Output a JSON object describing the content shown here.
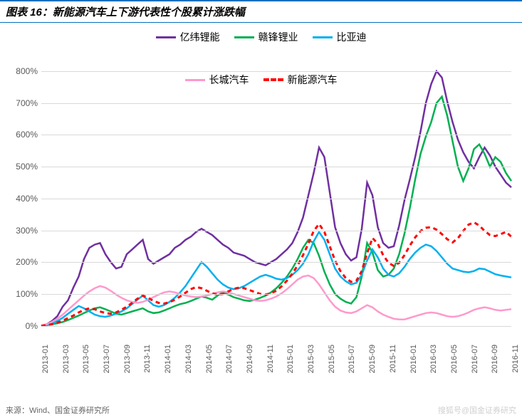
{
  "title": "图表 16：新能源汽车上下游代表性个股累计涨跌幅",
  "source": "来源：Wind、国金证券研究所",
  "watermark": "搜狐号@国金证券研究",
  "chart": {
    "type": "line",
    "background_color": "#ffffff",
    "grid_color": "#d9d9d9",
    "title_fontsize": 15,
    "label_fontsize": 12,
    "ylim": [
      -50,
      800
    ],
    "ytick_step": 100,
    "yticks": [
      "0%",
      "100%",
      "200%",
      "300%",
      "400%",
      "500%",
      "600%",
      "700%",
      "800%"
    ],
    "x_categories": [
      "2013-01",
      "2013-03",
      "2013-05",
      "2013-07",
      "2013-09",
      "2013-11",
      "2014-01",
      "2014-03",
      "2014-05",
      "2014-07",
      "2014-09",
      "2014-11",
      "2015-01",
      "2015-03",
      "2015-05",
      "2015-07",
      "2015-09",
      "2015-11",
      "2016-01",
      "2016-03",
      "2016-05",
      "2016-07",
      "2016-09",
      "2016-11"
    ],
    "series": [
      {
        "name": "亿纬锂能",
        "color": "#7030a0",
        "line_width": 2.5,
        "dash": "none",
        "data": [
          0,
          5,
          15,
          30,
          60,
          80,
          120,
          155,
          210,
          245,
          255,
          260,
          225,
          200,
          180,
          185,
          225,
          240,
          255,
          270,
          210,
          195,
          205,
          215,
          225,
          245,
          255,
          270,
          280,
          295,
          305,
          295,
          285,
          270,
          255,
          245,
          230,
          225,
          220,
          210,
          200,
          195,
          190,
          200,
          210,
          225,
          240,
          260,
          295,
          340,
          410,
          480,
          560,
          530,
          420,
          310,
          260,
          225,
          205,
          215,
          305,
          450,
          410,
          310,
          260,
          245,
          250,
          315,
          395,
          460,
          530,
          610,
          700,
          760,
          800,
          780,
          705,
          640,
          585,
          545,
          515,
          495,
          530,
          560,
          535,
          500,
          475,
          450,
          435
        ]
      },
      {
        "name": "赣锋锂业",
        "color": "#00b050",
        "line_width": 2.5,
        "dash": "none",
        "data": [
          0,
          2,
          5,
          8,
          12,
          18,
          25,
          32,
          40,
          48,
          55,
          58,
          52,
          45,
          38,
          35,
          40,
          45,
          50,
          55,
          45,
          40,
          42,
          48,
          55,
          62,
          68,
          72,
          78,
          85,
          92,
          88,
          82,
          95,
          105,
          98,
          90,
          85,
          80,
          78,
          82,
          88,
          95,
          105,
          118,
          135,
          155,
          180,
          210,
          245,
          270,
          260,
          220,
          170,
          130,
          100,
          85,
          75,
          70,
          90,
          155,
          260,
          230,
          175,
          155,
          160,
          180,
          225,
          290,
          370,
          460,
          540,
          595,
          640,
          700,
          720,
          660,
          580,
          500,
          455,
          495,
          555,
          570,
          540,
          500,
          530,
          515,
          480,
          455
        ]
      },
      {
        "name": "比亚迪",
        "color": "#00b0f0",
        "line_width": 2.5,
        "dash": "none",
        "data": [
          0,
          3,
          8,
          15,
          25,
          38,
          50,
          62,
          55,
          45,
          35,
          30,
          28,
          32,
          38,
          45,
          55,
          68,
          82,
          95,
          80,
          65,
          60,
          65,
          75,
          88,
          105,
          125,
          150,
          175,
          200,
          185,
          165,
          145,
          130,
          120,
          115,
          118,
          125,
          135,
          145,
          155,
          160,
          155,
          148,
          145,
          150,
          160,
          175,
          195,
          225,
          265,
          295,
          270,
          225,
          180,
          155,
          140,
          130,
          135,
          160,
          205,
          240,
          215,
          180,
          160,
          155,
          165,
          185,
          210,
          230,
          245,
          255,
          250,
          235,
          215,
          195,
          180,
          175,
          170,
          168,
          172,
          180,
          178,
          170,
          162,
          158,
          155,
          152
        ]
      },
      {
        "name": "长城汽车",
        "color": "#ff99cc",
        "line_width": 2.5,
        "dash": "none",
        "data": [
          0,
          5,
          12,
          22,
          35,
          50,
          65,
          80,
          95,
          108,
          118,
          125,
          120,
          110,
          98,
          88,
          80,
          75,
          72,
          75,
          82,
          90,
          98,
          105,
          108,
          105,
          100,
          95,
          92,
          90,
          92,
          95,
          100,
          105,
          108,
          105,
          100,
          95,
          90,
          85,
          80,
          78,
          80,
          85,
          92,
          102,
          115,
          130,
          145,
          155,
          158,
          150,
          130,
          105,
          80,
          60,
          48,
          42,
          40,
          45,
          55,
          65,
          58,
          45,
          35,
          28,
          22,
          20,
          20,
          25,
          30,
          35,
          40,
          42,
          40,
          35,
          30,
          28,
          30,
          35,
          42,
          50,
          55,
          58,
          55,
          50,
          48,
          50,
          52
        ]
      },
      {
        "name": "新能源汽车",
        "color": "#ff0000",
        "line_width": 3,
        "dash": "6,5",
        "data": [
          0,
          2,
          5,
          10,
          16,
          24,
          32,
          42,
          50,
          55,
          52,
          45,
          40,
          38,
          42,
          50,
          60,
          72,
          85,
          95,
          88,
          78,
          72,
          70,
          74,
          82,
          92,
          104,
          115,
          122,
          118,
          110,
          102,
          98,
          100,
          108,
          116,
          120,
          118,
          112,
          106,
          100,
          98,
          102,
          110,
          124,
          142,
          164,
          190,
          222,
          258,
          298,
          320,
          295,
          250,
          205,
          172,
          150,
          138,
          142,
          172,
          228,
          276,
          258,
          222,
          198,
          188,
          198,
          222,
          252,
          278,
          298,
          308,
          310,
          302,
          288,
          272,
          262,
          275,
          298,
          318,
          325,
          315,
          298,
          285,
          282,
          288,
          295,
          280
        ]
      }
    ]
  }
}
